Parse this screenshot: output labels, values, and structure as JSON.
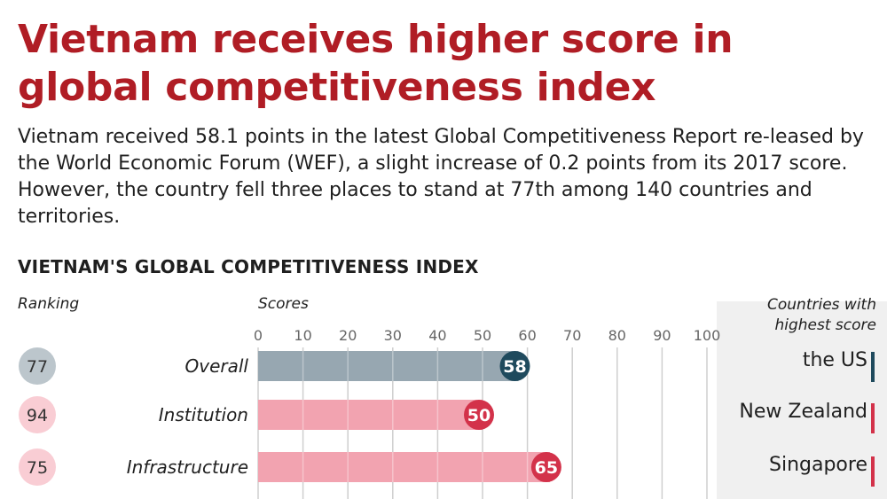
{
  "header": {
    "title": "Vietnam receives higher score in global competitiveness index",
    "description": "Vietnam received 58.1 points in the latest Global Competitiveness Report re-leased by the World Economic Forum (WEF), a slight increase of 0.2 points from its 2017 score. However, the country fell three places to stand at 77th among 140 countries and territories."
  },
  "colors": {
    "title_red": "#b01d25",
    "overall_bar": "#97a7b1",
    "overall_badge": "#1f4a5d",
    "overall_rank_bg": "#bcc6cc",
    "pink_bar": "#f2a3b0",
    "red_badge": "#d3324a",
    "pink_rank_bg": "#f9cdd4",
    "teal_marker": "#1f4a5d",
    "red_marker": "#d3324a"
  },
  "chart_data": {
    "type": "bar",
    "title": "VIETNAM'S GLOBAL COMPETITIVENESS INDEX",
    "ranking_label": "Ranking",
    "scores_label": "Scores",
    "countries_label": "Countries with highest score",
    "xlim": [
      0,
      100
    ],
    "ticks": [
      0,
      10,
      20,
      30,
      40,
      50,
      60,
      70,
      80,
      90,
      100
    ],
    "categories": [
      "Overall",
      "Institution",
      "Infrastructure"
    ],
    "values": [
      58,
      50,
      65
    ],
    "rankings": [
      77,
      94,
      75
    ],
    "top_countries": [
      "the US",
      "New Zealand",
      "Singapore"
    ]
  }
}
